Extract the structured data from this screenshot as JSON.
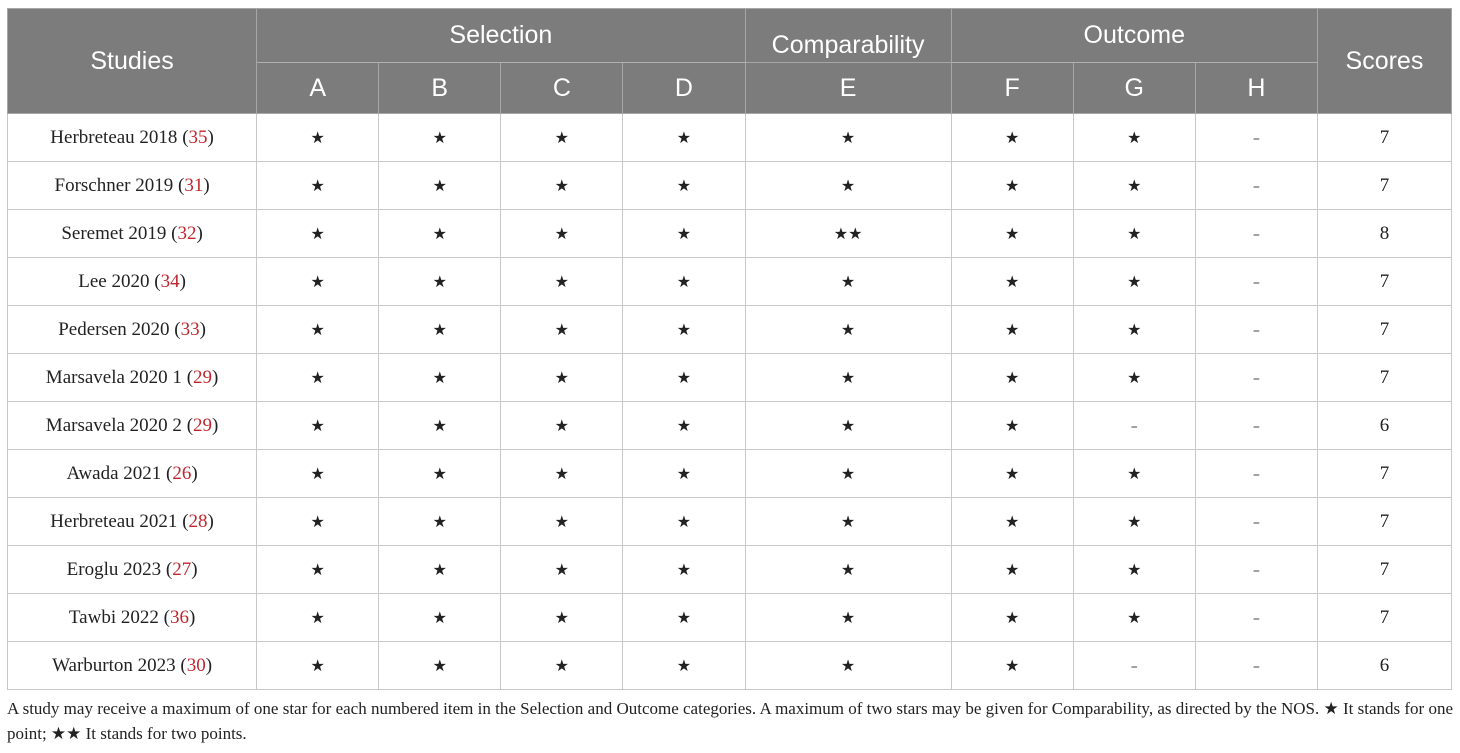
{
  "header": {
    "studies": "Studies",
    "groups": {
      "selection": "Selection",
      "comparability": "Comparability",
      "outcome": "Outcome"
    },
    "scores": "Scores",
    "columns": [
      "A",
      "B",
      "C",
      "D",
      "E",
      "F",
      "G",
      "H"
    ]
  },
  "rows": [
    {
      "study": "Herbreteau 2018",
      "ref": "35",
      "cells": [
        "★",
        "★",
        "★",
        "★",
        "★",
        "★",
        "★",
        "–"
      ],
      "score": "7"
    },
    {
      "study": "Forschner 2019",
      "ref": "31",
      "cells": [
        "★",
        "★",
        "★",
        "★",
        "★",
        "★",
        "★",
        "–"
      ],
      "score": "7"
    },
    {
      "study": "Seremet 2019",
      "ref": "32",
      "cells": [
        "★",
        "★",
        "★",
        "★",
        "★★",
        "★",
        "★",
        "–"
      ],
      "score": "8"
    },
    {
      "study": "Lee 2020",
      "ref": "34",
      "cells": [
        "★",
        "★",
        "★",
        "★",
        "★",
        "★",
        "★",
        "–"
      ],
      "score": "7"
    },
    {
      "study": "Pedersen 2020",
      "ref": "33",
      "cells": [
        "★",
        "★",
        "★",
        "★",
        "★",
        "★",
        "★",
        "–"
      ],
      "score": "7"
    },
    {
      "study": "Marsavela 2020 1",
      "ref": "29",
      "cells": [
        "★",
        "★",
        "★",
        "★",
        "★",
        "★",
        "★",
        "–"
      ],
      "score": "7"
    },
    {
      "study": "Marsavela 2020 2",
      "ref": "29",
      "cells": [
        "★",
        "★",
        "★",
        "★",
        "★",
        "★",
        "–",
        "–"
      ],
      "score": "6"
    },
    {
      "study": "Awada 2021",
      "ref": "26",
      "cells": [
        "★",
        "★",
        "★",
        "★",
        "★",
        "★",
        "★",
        "–"
      ],
      "score": "7"
    },
    {
      "study": "Herbreteau 2021",
      "ref": "28",
      "cells": [
        "★",
        "★",
        "★",
        "★",
        "★",
        "★",
        "★",
        "–"
      ],
      "score": "7"
    },
    {
      "study": "Eroglu 2023",
      "ref": "27",
      "cells": [
        "★",
        "★",
        "★",
        "★",
        "★",
        "★",
        "★",
        "–"
      ],
      "score": "7"
    },
    {
      "study": "Tawbi 2022",
      "ref": "36",
      "cells": [
        "★",
        "★",
        "★",
        "★",
        "★",
        "★",
        "★",
        "–"
      ],
      "score": "7"
    },
    {
      "study": "Warburton 2023",
      "ref": "30",
      "cells": [
        "★",
        "★",
        "★",
        "★",
        "★",
        "★",
        "–",
        "–"
      ],
      "score": "6"
    }
  ],
  "footnote": "A study may receive a maximum of one star for each numbered item in the Selection and Outcome categories. A maximum of two stars may be given for Comparability, as directed by the NOS. ★ It stands for one point; ★★ It stands for two points.",
  "colors": {
    "header_bg": "#7b7c7b",
    "header_text": "#ffffff",
    "ref_text": "#c0272d",
    "border": "#c8c8c8"
  }
}
